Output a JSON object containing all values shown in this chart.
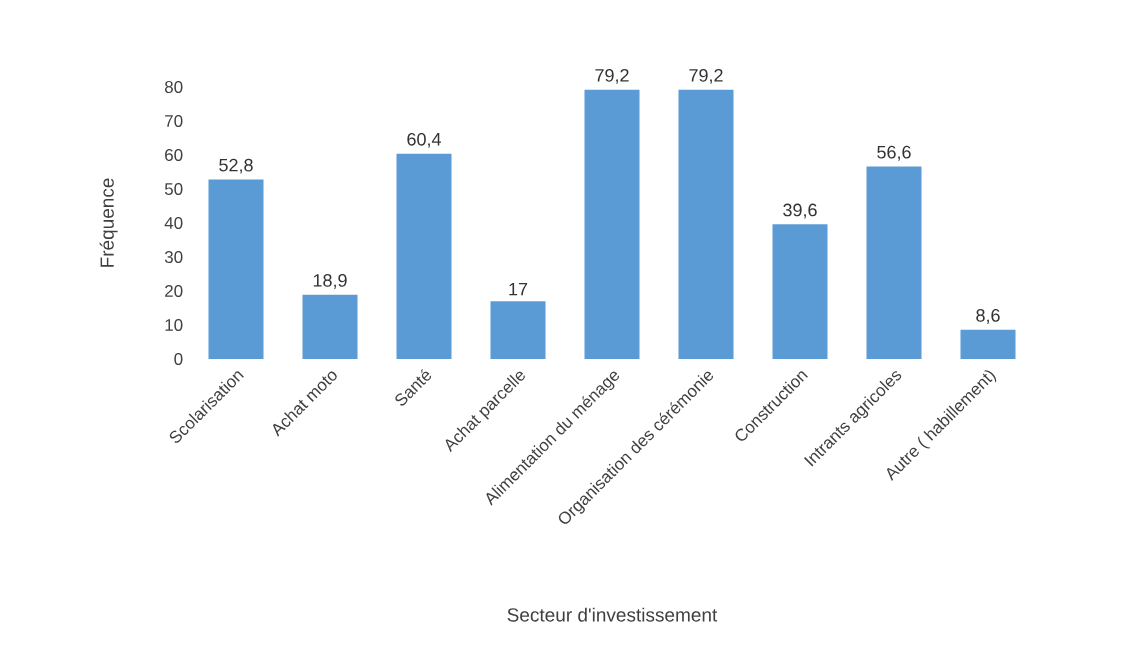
{
  "chart_data": {
    "type": "bar",
    "xlabel": "Secteur d'investissement",
    "ylabel": "Fréquence",
    "categories": [
      "Scolarisation",
      "Achat moto",
      "Santé",
      "Achat parcelle",
      "Alimentation du ménage",
      "Organisation des cérémonie",
      "Construction",
      "Intrants agricoles",
      "Autre ( habillement)"
    ],
    "values": [
      52.8,
      18.9,
      60.4,
      17,
      79.2,
      79.2,
      39.6,
      56.6,
      8.6
    ],
    "value_labels": [
      "52,8",
      "18,9",
      "60,4",
      "17",
      "79,2",
      "79,2",
      "39,6",
      "56,6",
      "8,6"
    ],
    "color": "#5b9bd5",
    "ylim": [
      0,
      80
    ],
    "yticks": [
      0,
      10,
      20,
      30,
      40,
      50,
      60,
      70,
      80
    ]
  }
}
